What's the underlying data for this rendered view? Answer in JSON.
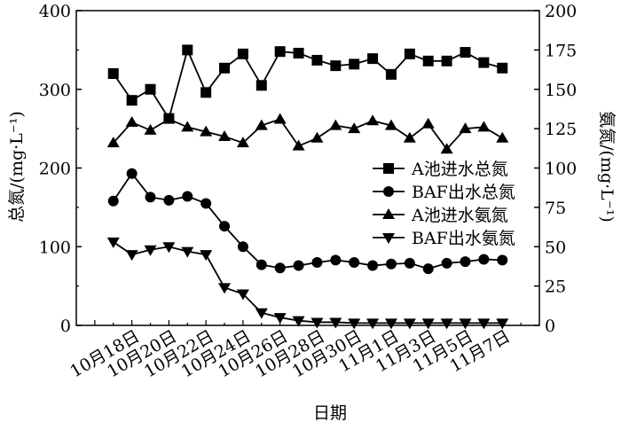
{
  "chart_data": {
    "type": "line",
    "xlabel": "日期",
    "ylabel_left": "总氮/(mg·L⁻¹)",
    "ylabel_right": "氨氮/(mg·L⁻¹)",
    "ylim_left": [
      0,
      400
    ],
    "ylim_right": [
      0,
      200
    ],
    "yticks_left": [
      "0",
      "100",
      "200",
      "300",
      "400"
    ],
    "yticks_right": [
      "0",
      "25",
      "50",
      "75",
      "100",
      "125",
      "150",
      "175",
      "200"
    ],
    "x_tick_labels": [
      "10月18日",
      "10月20日",
      "10月22日",
      "10月24日",
      "10月26日",
      "10月28日",
      "10月30日",
      "11月1日",
      "11月3日",
      "11月5日",
      "11月7日"
    ],
    "x": [
      17,
      18,
      19,
      20,
      21,
      22,
      23,
      24,
      25,
      26,
      27,
      28,
      29,
      30,
      31,
      32,
      33,
      34,
      35,
      36,
      37,
      38
    ],
    "grid": false,
    "legend_position": "right",
    "series": [
      {
        "name": "A池进水总氮",
        "axis": "left",
        "marker": "square",
        "values": [
          320,
          286,
          300,
          263,
          350,
          296,
          327,
          345,
          305,
          348,
          346,
          337,
          330,
          332,
          339,
          319,
          345,
          336,
          336,
          347,
          334,
          327
        ]
      },
      {
        "name": "BAF出水总氮",
        "axis": "left",
        "marker": "circle",
        "values": [
          158,
          193,
          163,
          159,
          164,
          155,
          126,
          100,
          77,
          73,
          76,
          80,
          83,
          80,
          76,
          78,
          79,
          72,
          79,
          81,
          84,
          83
        ]
      },
      {
        "name": "A池进水氨氮",
        "axis": "right",
        "marker": "triangle-up",
        "values": [
          116,
          129,
          124,
          131,
          126,
          123,
          120,
          116,
          127,
          131,
          114,
          119,
          127,
          125,
          130,
          127,
          119,
          128,
          112,
          125,
          126,
          119
        ]
      },
      {
        "name": "BAF出水氨氮",
        "axis": "right",
        "marker": "triangle-down",
        "values": [
          53,
          45,
          48,
          50,
          47,
          45,
          24,
          20,
          8,
          5,
          3,
          2,
          2,
          1.5,
          1.5,
          1.5,
          1.5,
          1.5,
          1.5,
          1.5,
          1.5,
          1.5
        ]
      }
    ]
  }
}
